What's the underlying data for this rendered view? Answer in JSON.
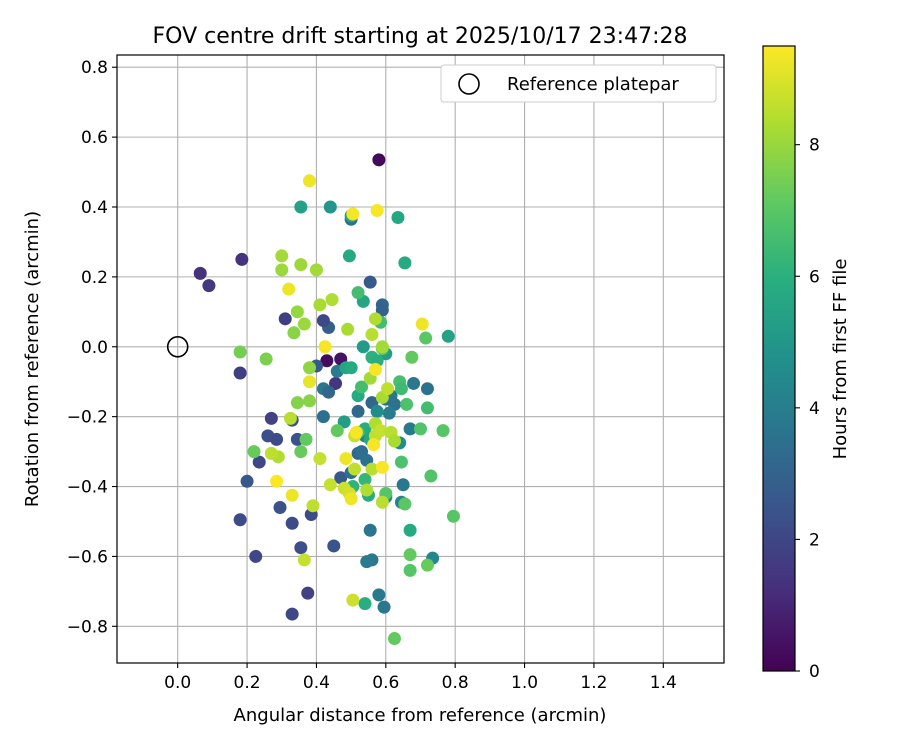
{
  "chart_data": {
    "type": "scatter",
    "title": "FOV centre drift starting at 2025/10/17 23:47:28",
    "xlabel": "Angular distance from reference (arcmin)",
    "ylabel": "Rotation from reference (arcmin)",
    "xlim": [
      -0.175,
      1.575
    ],
    "ylim": [
      -0.905,
      0.835
    ],
    "xticks": [
      "0.0",
      "0.2",
      "0.4",
      "0.6",
      "0.8",
      "1.0",
      "1.2",
      "1.4"
    ],
    "yticks": [
      "−0.8",
      "−0.6",
      "−0.4",
      "−0.2",
      "0.0",
      "0.2",
      "0.4",
      "0.6",
      "0.8"
    ],
    "xtick_values": [
      0.0,
      0.2,
      0.4,
      0.6,
      0.8,
      1.0,
      1.2,
      1.4
    ],
    "ytick_values": [
      -0.8,
      -0.6,
      -0.4,
      -0.2,
      0.0,
      0.2,
      0.4,
      0.6,
      0.8
    ],
    "grid": true,
    "legend": {
      "placement": "top-right",
      "entries": [
        "Reference platepar"
      ]
    },
    "colorbar": {
      "label": "Hours from first FF file",
      "colormap": "viridis",
      "range": [
        0,
        9.5
      ],
      "ticks": [
        "0",
        "2",
        "4",
        "6",
        "8"
      ],
      "tick_values": [
        0,
        2,
        4,
        6,
        8
      ]
    },
    "reference_point": {
      "x": 0.0,
      "y": 0.0
    },
    "points": [
      {
        "x": 0.58,
        "y": 0.535,
        "h": 0.2
      },
      {
        "x": 0.43,
        "y": -0.04,
        "h": 0.3
      },
      {
        "x": 0.47,
        "y": -0.035,
        "h": 0.5
      },
      {
        "x": 0.065,
        "y": 0.21,
        "h": 1.4
      },
      {
        "x": 0.09,
        "y": 0.175,
        "h": 1.6
      },
      {
        "x": 0.185,
        "y": 0.25,
        "h": 1.4
      },
      {
        "x": 0.31,
        "y": 0.08,
        "h": 1.8
      },
      {
        "x": 0.18,
        "y": -0.075,
        "h": 1.8
      },
      {
        "x": 0.455,
        "y": -0.105,
        "h": 1.5
      },
      {
        "x": 0.4,
        "y": -0.055,
        "h": 2.7
      },
      {
        "x": 0.435,
        "y": 0.055,
        "h": 2.9
      },
      {
        "x": 0.42,
        "y": 0.075,
        "h": 2.1
      },
      {
        "x": 0.27,
        "y": -0.205,
        "h": 1.9
      },
      {
        "x": 0.26,
        "y": -0.255,
        "h": 2.3
      },
      {
        "x": 0.285,
        "y": -0.265,
        "h": 2.2
      },
      {
        "x": 0.345,
        "y": -0.265,
        "h": 2.4
      },
      {
        "x": 0.33,
        "y": -0.21,
        "h": 2.3
      },
      {
        "x": 0.235,
        "y": -0.33,
        "h": 2.1
      },
      {
        "x": 0.2,
        "y": -0.385,
        "h": 2.6
      },
      {
        "x": 0.18,
        "y": -0.495,
        "h": 2.2
      },
      {
        "x": 0.225,
        "y": -0.6,
        "h": 2.1
      },
      {
        "x": 0.295,
        "y": -0.46,
        "h": 2.4
      },
      {
        "x": 0.33,
        "y": -0.505,
        "h": 2.2
      },
      {
        "x": 0.355,
        "y": -0.575,
        "h": 2.3
      },
      {
        "x": 0.33,
        "y": -0.765,
        "h": 2.1
      },
      {
        "x": 0.375,
        "y": -0.705,
        "h": 1.9
      },
      {
        "x": 0.385,
        "y": -0.48,
        "h": 2.2
      },
      {
        "x": 0.45,
        "y": -0.57,
        "h": 2.5
      },
      {
        "x": 0.47,
        "y": -0.375,
        "h": 2.7
      },
      {
        "x": 0.555,
        "y": 0.185,
        "h": 2.7
      },
      {
        "x": 0.59,
        "y": 0.12,
        "h": 3.2
      },
      {
        "x": 0.59,
        "y": 0.105,
        "h": 3.0
      },
      {
        "x": 0.5,
        "y": 0.365,
        "h": 3.6
      },
      {
        "x": 0.46,
        "y": -0.07,
        "h": 3.9
      },
      {
        "x": 0.42,
        "y": -0.12,
        "h": 3.8
      },
      {
        "x": 0.435,
        "y": -0.13,
        "h": 3.2
      },
      {
        "x": 0.56,
        "y": -0.16,
        "h": 3.2
      },
      {
        "x": 0.52,
        "y": -0.185,
        "h": 3.3
      },
      {
        "x": 0.42,
        "y": -0.2,
        "h": 3.5
      },
      {
        "x": 0.54,
        "y": -0.255,
        "h": 4.0
      },
      {
        "x": 0.52,
        "y": -0.305,
        "h": 3.3
      },
      {
        "x": 0.53,
        "y": -0.3,
        "h": 3.5
      },
      {
        "x": 0.545,
        "y": -0.325,
        "h": 3.6
      },
      {
        "x": 0.5,
        "y": -0.36,
        "h": 3.4
      },
      {
        "x": 0.555,
        "y": -0.525,
        "h": 3.7
      },
      {
        "x": 0.56,
        "y": -0.61,
        "h": 3.8
      },
      {
        "x": 0.545,
        "y": -0.615,
        "h": 4.0
      },
      {
        "x": 0.58,
        "y": -0.71,
        "h": 3.9
      },
      {
        "x": 0.595,
        "y": -0.745,
        "h": 3.8
      },
      {
        "x": 0.6,
        "y": -0.15,
        "h": 3.4
      },
      {
        "x": 0.625,
        "y": -0.165,
        "h": 3.6
      },
      {
        "x": 0.615,
        "y": -0.14,
        "h": 3.7
      },
      {
        "x": 0.61,
        "y": -0.19,
        "h": 4.0
      },
      {
        "x": 0.68,
        "y": -0.105,
        "h": 3.8
      },
      {
        "x": 0.72,
        "y": -0.12,
        "h": 3.6
      },
      {
        "x": 0.65,
        "y": -0.395,
        "h": 3.8
      },
      {
        "x": 0.67,
        "y": -0.235,
        "h": 3.9
      },
      {
        "x": 0.735,
        "y": -0.605,
        "h": 4.4
      },
      {
        "x": 0.645,
        "y": -0.445,
        "h": 4.3
      },
      {
        "x": 0.6,
        "y": -0.43,
        "h": 4.2
      },
      {
        "x": 0.64,
        "y": -0.275,
        "h": 4.6
      },
      {
        "x": 0.575,
        "y": -0.185,
        "h": 4.6
      },
      {
        "x": 0.355,
        "y": 0.4,
        "h": 5.5
      },
      {
        "x": 0.44,
        "y": 0.4,
        "h": 5.0
      },
      {
        "x": 0.5,
        "y": 0.375,
        "h": 5.5
      },
      {
        "x": 0.635,
        "y": 0.37,
        "h": 5.7
      },
      {
        "x": 0.495,
        "y": 0.26,
        "h": 5.8
      },
      {
        "x": 0.655,
        "y": 0.24,
        "h": 5.8
      },
      {
        "x": 0.535,
        "y": 0.13,
        "h": 5.6
      },
      {
        "x": 0.78,
        "y": 0.03,
        "h": 5.5
      },
      {
        "x": 0.535,
        "y": 0.0,
        "h": 5.2
      },
      {
        "x": 0.6,
        "y": -0.02,
        "h": 5.3
      },
      {
        "x": 0.485,
        "y": -0.06,
        "h": 5.6
      },
      {
        "x": 0.5,
        "y": -0.06,
        "h": 5.8
      },
      {
        "x": 0.56,
        "y": -0.03,
        "h": 6.1
      },
      {
        "x": 0.575,
        "y": -0.04,
        "h": 6.0
      },
      {
        "x": 0.52,
        "y": -0.14,
        "h": 5.8
      },
      {
        "x": 0.48,
        "y": -0.215,
        "h": 5.3
      },
      {
        "x": 0.54,
        "y": -0.235,
        "h": 5.9
      },
      {
        "x": 0.555,
        "y": -0.265,
        "h": 5.7
      },
      {
        "x": 0.55,
        "y": -0.425,
        "h": 5.9
      },
      {
        "x": 0.505,
        "y": -0.4,
        "h": 6.2
      },
      {
        "x": 0.54,
        "y": -0.38,
        "h": 6.3
      },
      {
        "x": 0.67,
        "y": -0.525,
        "h": 5.8
      },
      {
        "x": 0.54,
        "y": -0.735,
        "h": 6.0
      },
      {
        "x": 0.585,
        "y": 0.07,
        "h": 6.6
      },
      {
        "x": 0.52,
        "y": 0.155,
        "h": 6.6
      },
      {
        "x": 0.52,
        "y": -0.245,
        "h": 6.7
      },
      {
        "x": 0.53,
        "y": -0.115,
        "h": 6.6
      },
      {
        "x": 0.64,
        "y": -0.1,
        "h": 6.7
      },
      {
        "x": 0.645,
        "y": -0.12,
        "h": 6.5
      },
      {
        "x": 0.66,
        "y": -0.165,
        "h": 6.8
      },
      {
        "x": 0.72,
        "y": -0.175,
        "h": 6.6
      },
      {
        "x": 0.7,
        "y": -0.235,
        "h": 6.9
      },
      {
        "x": 0.765,
        "y": -0.24,
        "h": 7.0
      },
      {
        "x": 0.73,
        "y": -0.37,
        "h": 6.9
      },
      {
        "x": 0.645,
        "y": -0.33,
        "h": 6.8
      },
      {
        "x": 0.6,
        "y": -0.42,
        "h": 7.0
      },
      {
        "x": 0.655,
        "y": -0.45,
        "h": 7.1
      },
      {
        "x": 0.67,
        "y": -0.595,
        "h": 7.2
      },
      {
        "x": 0.67,
        "y": -0.64,
        "h": 7.0
      },
      {
        "x": 0.72,
        "y": -0.625,
        "h": 7.3
      },
      {
        "x": 0.625,
        "y": -0.835,
        "h": 7.2
      },
      {
        "x": 0.795,
        "y": -0.485,
        "h": 7.0
      },
      {
        "x": 0.715,
        "y": 0.025,
        "h": 7.1
      },
      {
        "x": 0.675,
        "y": -0.03,
        "h": 7.2
      },
      {
        "x": 0.59,
        "y": -0.005,
        "h": 7.2
      },
      {
        "x": 0.46,
        "y": -0.24,
        "h": 7.2
      },
      {
        "x": 0.37,
        "y": -0.265,
        "h": 7.2
      },
      {
        "x": 0.355,
        "y": -0.3,
        "h": 7.3
      },
      {
        "x": 0.22,
        "y": -0.3,
        "h": 7.3
      },
      {
        "x": 0.18,
        "y": -0.015,
        "h": 7.5
      },
      {
        "x": 0.255,
        "y": -0.035,
        "h": 7.6
      },
      {
        "x": 0.345,
        "y": -0.16,
        "h": 7.7
      },
      {
        "x": 0.38,
        "y": -0.155,
        "h": 7.8
      },
      {
        "x": 0.38,
        "y": -0.06,
        "h": 7.9
      },
      {
        "x": 0.335,
        "y": 0.04,
        "h": 7.8
      },
      {
        "x": 0.345,
        "y": 0.1,
        "h": 8.0
      },
      {
        "x": 0.365,
        "y": 0.065,
        "h": 8.1
      },
      {
        "x": 0.355,
        "y": 0.235,
        "h": 8.1
      },
      {
        "x": 0.3,
        "y": 0.26,
        "h": 8.2
      },
      {
        "x": 0.3,
        "y": 0.22,
        "h": 8.1
      },
      {
        "x": 0.4,
        "y": 0.22,
        "h": 8.2
      },
      {
        "x": 0.41,
        "y": 0.12,
        "h": 8.3
      },
      {
        "x": 0.445,
        "y": 0.135,
        "h": 8.4
      },
      {
        "x": 0.49,
        "y": 0.05,
        "h": 8.3
      },
      {
        "x": 0.56,
        "y": 0.035,
        "h": 8.5
      },
      {
        "x": 0.57,
        "y": 0.08,
        "h": 8.4
      },
      {
        "x": 0.59,
        "y": 0.0,
        "h": 8.2
      },
      {
        "x": 0.555,
        "y": -0.09,
        "h": 8.2
      },
      {
        "x": 0.59,
        "y": -0.145,
        "h": 8.3
      },
      {
        "x": 0.57,
        "y": -0.22,
        "h": 8.4
      },
      {
        "x": 0.57,
        "y": -0.255,
        "h": 8.6
      },
      {
        "x": 0.585,
        "y": -0.24,
        "h": 8.7
      },
      {
        "x": 0.615,
        "y": -0.245,
        "h": 8.5
      },
      {
        "x": 0.625,
        "y": -0.27,
        "h": 8.3
      },
      {
        "x": 0.51,
        "y": -0.255,
        "h": 8.7
      },
      {
        "x": 0.325,
        "y": -0.205,
        "h": 8.5
      },
      {
        "x": 0.29,
        "y": -0.315,
        "h": 8.4
      },
      {
        "x": 0.27,
        "y": -0.305,
        "h": 8.6
      },
      {
        "x": 0.41,
        "y": -0.32,
        "h": 8.7
      },
      {
        "x": 0.51,
        "y": -0.35,
        "h": 8.6
      },
      {
        "x": 0.56,
        "y": -0.35,
        "h": 8.5
      },
      {
        "x": 0.44,
        "y": -0.395,
        "h": 8.7
      },
      {
        "x": 0.48,
        "y": -0.405,
        "h": 8.8
      },
      {
        "x": 0.495,
        "y": -0.42,
        "h": 8.9
      },
      {
        "x": 0.545,
        "y": -0.41,
        "h": 8.4
      },
      {
        "x": 0.59,
        "y": -0.445,
        "h": 8.5
      },
      {
        "x": 0.39,
        "y": -0.455,
        "h": 8.6
      },
      {
        "x": 0.365,
        "y": -0.61,
        "h": 8.7
      },
      {
        "x": 0.505,
        "y": -0.725,
        "h": 8.8
      },
      {
        "x": 0.605,
        "y": -0.12,
        "h": 8.6
      },
      {
        "x": 0.38,
        "y": 0.475,
        "h": 9.3
      },
      {
        "x": 0.505,
        "y": 0.38,
        "h": 9.4
      },
      {
        "x": 0.575,
        "y": 0.39,
        "h": 9.4
      },
      {
        "x": 0.32,
        "y": 0.165,
        "h": 9.3
      },
      {
        "x": 0.705,
        "y": 0.065,
        "h": 9.3
      },
      {
        "x": 0.425,
        "y": 0.0,
        "h": 9.4
      },
      {
        "x": 0.57,
        "y": -0.065,
        "h": 9.4
      },
      {
        "x": 0.38,
        "y": -0.1,
        "h": 9.2
      },
      {
        "x": 0.515,
        "y": -0.245,
        "h": 9.4
      },
      {
        "x": 0.565,
        "y": -0.28,
        "h": 9.4
      },
      {
        "x": 0.485,
        "y": -0.32,
        "h": 9.3
      },
      {
        "x": 0.59,
        "y": -0.345,
        "h": 9.4
      },
      {
        "x": 0.285,
        "y": -0.385,
        "h": 9.5
      },
      {
        "x": 0.33,
        "y": -0.425,
        "h": 9.3
      },
      {
        "x": 0.5,
        "y": -0.435,
        "h": 9.3
      }
    ]
  }
}
